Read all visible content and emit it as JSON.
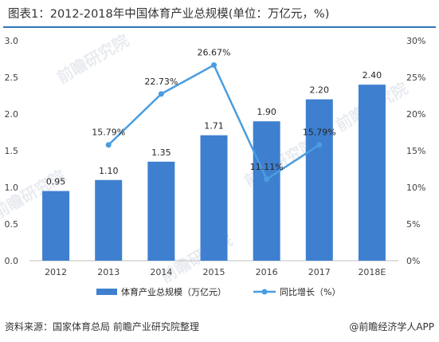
{
  "title": "图表1：2012-2018年中国体育产业总规模(单位：万亿元，%)",
  "source": "资料来源：国家体育总局 前瞻产业研究院整理",
  "publisher": "@前瞻经济学人APP",
  "watermark": "前瞻研究院",
  "colors": {
    "bar": "#3e7fd0",
    "line": "#4a9de0",
    "rule": "#2e75b6"
  },
  "chart_data": {
    "type": "bar",
    "categories": [
      "2012",
      "2013",
      "2014",
      "2015",
      "2016",
      "2017",
      "2018E"
    ],
    "series": [
      {
        "name": "体育产业总规模（万亿元）",
        "type": "bar",
        "axis": "left",
        "values": [
          0.95,
          1.1,
          1.35,
          1.71,
          1.9,
          2.2,
          2.4
        ],
        "labels": [
          "0.95",
          "1.10",
          "1.35",
          "1.71",
          "1.90",
          "2.20",
          "2.40"
        ]
      },
      {
        "name": "同比增长（%）",
        "type": "line",
        "axis": "right",
        "values": [
          null,
          15.79,
          22.73,
          26.67,
          11.11,
          15.79,
          null
        ],
        "labels": [
          "",
          "15.79%",
          "22.73%",
          "26.67%",
          "11.11%",
          "15.79%",
          ""
        ]
      }
    ],
    "y_left": {
      "min": 0,
      "max": 3.0,
      "ticks": [
        "0.0",
        "0.5",
        "1.0",
        "1.5",
        "2.0",
        "2.5",
        "3.0"
      ]
    },
    "y_right": {
      "min": 0,
      "max": 30,
      "ticks": [
        "0%",
        "5%",
        "10%",
        "15%",
        "20%",
        "25%",
        "30%"
      ]
    },
    "legend_position": "bottom",
    "grid": false
  }
}
